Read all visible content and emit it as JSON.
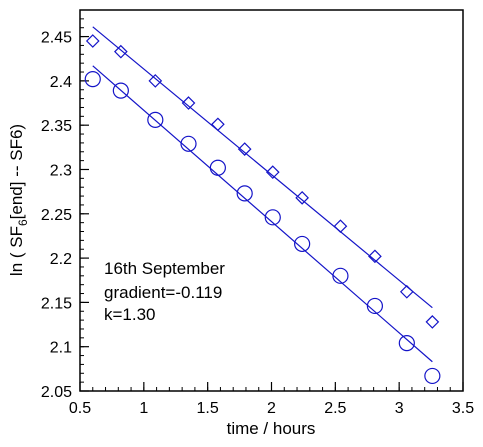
{
  "chart_data": {
    "type": "scatter",
    "xlabel": "time  / hours",
    "ylabel": {
      "pre": "ln ( SF",
      "sub": "6",
      "post": "[end] -- SF6)"
    },
    "xlim": [
      0.5,
      3.5
    ],
    "ylim": [
      2.05,
      2.48
    ],
    "x_ticks": [
      "0.5",
      "1",
      "1.5",
      "2",
      "2.5",
      "3",
      "3.5"
    ],
    "y_ticks": [
      "2.05",
      "2.1",
      "2.15",
      "2.2",
      "2.25",
      "2.3",
      "2.35",
      "2.4",
      "2.45"
    ],
    "grid": false,
    "legend": "none",
    "color": "#1414c8",
    "annotations": [
      "16th September",
      "gradient=-0.119",
      "k=1.30"
    ],
    "series": [
      {
        "marker": "diamond",
        "x": [
          0.6,
          0.82,
          1.09,
          1.35,
          1.58,
          1.79,
          2.01,
          2.24,
          2.54,
          2.81,
          3.06,
          3.26
        ],
        "y": [
          2.445,
          2.433,
          2.4,
          2.375,
          2.351,
          2.323,
          2.297,
          2.268,
          2.236,
          2.202,
          2.162,
          2.128
        ],
        "fit": {
          "x": [
            0.6,
            3.26
          ],
          "y": [
            2.461,
            2.144
          ]
        }
      },
      {
        "marker": "circle",
        "x": [
          0.6,
          0.82,
          1.09,
          1.35,
          1.58,
          1.79,
          2.01,
          2.24,
          2.54,
          2.81,
          3.06,
          3.26
        ],
        "y": [
          2.402,
          2.389,
          2.356,
          2.329,
          2.302,
          2.273,
          2.246,
          2.216,
          2.18,
          2.146,
          2.104,
          2.067
        ],
        "fit": {
          "x": [
            0.6,
            3.26
          ],
          "y": [
            2.417,
            2.083
          ]
        }
      }
    ]
  }
}
